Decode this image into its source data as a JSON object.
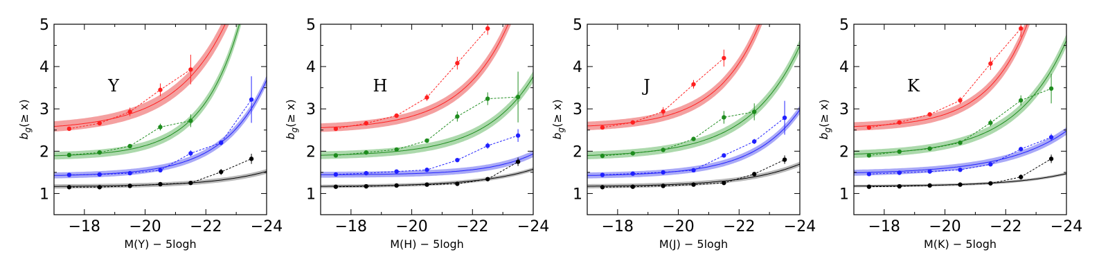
{
  "colors": {
    "red": "#ff2020",
    "green": "#1e8c1e",
    "blue": "#2020ff",
    "black": "#000000",
    "band_red": "#f08080",
    "band_green": "#90cc90",
    "band_blue": "#8c8cf4",
    "band_black": "#a0a0a0"
  },
  "chart_data": [
    {
      "type": "line",
      "title": "Y",
      "xlabel": "M(Y) − 5logh",
      "ylabel": "b_g(≥ x)",
      "xlim": [
        -17,
        -24
      ],
      "ylim": [
        0.5,
        5
      ],
      "xticks": [
        -18,
        -20,
        -22,
        -24
      ],
      "xtick_labels": [
        "−18",
        "−20",
        "−22",
        "−24"
      ],
      "yticks": [
        1,
        2,
        3,
        4,
        5
      ],
      "ytick_labels": [
        "1",
        "2",
        "3",
        "4",
        "5"
      ],
      "series": [
        {
          "name": "red",
          "color": "red",
          "x": [
            -17.5,
            -18.5,
            -19.5,
            -20.5,
            -21.5
          ],
          "y": [
            2.53,
            2.66,
            2.93,
            3.45,
            3.93
          ],
          "err": [
            0.04,
            0.04,
            0.1,
            0.15,
            0.35
          ],
          "model": {
            "a": 2.5,
            "k": 0.085,
            "m0": -17,
            "c": 0.6,
            "band": 0.12
          }
        },
        {
          "name": "green",
          "color": "green",
          "x": [
            -17.5,
            -18.5,
            -19.5,
            -20.5,
            -21.5
          ],
          "y": [
            1.91,
            1.97,
            2.12,
            2.57,
            2.72
          ],
          "err": [
            0.03,
            0.03,
            0.04,
            0.08,
            0.15
          ],
          "model": {
            "a": 1.87,
            "k": 0.0237,
            "m0": -17,
            "c": 0.8,
            "band": 0.09
          }
        },
        {
          "name": "blue",
          "color": "blue",
          "x": [
            -17.5,
            -18.5,
            -19.5,
            -20.5,
            -21.5,
            -22.5,
            -23.5
          ],
          "y": [
            1.44,
            1.45,
            1.48,
            1.55,
            1.95,
            2.2,
            3.22
          ],
          "err": [
            0.02,
            0.02,
            0.02,
            0.03,
            0.07,
            0.06,
            0.55
          ],
          "model": {
            "a": 1.41,
            "k": 0.0169,
            "m0": -17,
            "c": 0.7,
            "band": 0.07
          }
        },
        {
          "name": "black",
          "color": "black",
          "x": [
            -17.5,
            -18.5,
            -19.5,
            -20.5,
            -21.5,
            -22.5,
            -23.5
          ],
          "y": [
            1.15,
            1.15,
            1.18,
            1.22,
            1.25,
            1.51,
            1.82
          ],
          "err": [
            0.02,
            0.02,
            0.02,
            0.02,
            0.02,
            0.07,
            0.12
          ],
          "model": {
            "a": 1.16,
            "k": 0.0077,
            "m0": -17,
            "c": 0.55,
            "band": 0.05
          }
        }
      ]
    },
    {
      "type": "line",
      "title": "H",
      "xlabel": "M(H) − 5logh",
      "ylabel": "b_g(≥ x)",
      "xlim": [
        -17,
        -24
      ],
      "ylim": [
        0.5,
        5
      ],
      "xticks": [
        -18,
        -20,
        -22,
        -24
      ],
      "xtick_labels": [
        "−18",
        "−20",
        "−22",
        "−24"
      ],
      "yticks": [
        1,
        2,
        3,
        4,
        5
      ],
      "ytick_labels": [
        "1",
        "2",
        "3",
        "4",
        "5"
      ],
      "series": [
        {
          "name": "red",
          "color": "red",
          "x": [
            -17.5,
            -18.5,
            -19.5,
            -20.5,
            -21.5,
            -22.5
          ],
          "y": [
            2.53,
            2.66,
            2.84,
            3.27,
            4.08,
            4.9
          ],
          "err": [
            0.04,
            0.04,
            0.05,
            0.08,
            0.15,
            0.15
          ],
          "model": {
            "a": 2.51,
            "k": 0.045,
            "m0": -17,
            "c": 0.65,
            "band": 0.1
          }
        },
        {
          "name": "green",
          "color": "green",
          "x": [
            -17.5,
            -18.5,
            -19.5,
            -20.5,
            -21.5,
            -22.5,
            -23.5
          ],
          "y": [
            1.9,
            1.97,
            2.04,
            2.25,
            2.82,
            3.24,
            3.28
          ],
          "err": [
            0.03,
            0.03,
            0.04,
            0.05,
            0.12,
            0.15,
            0.6
          ],
          "model": {
            "a": 1.88,
            "k": 0.0245,
            "m0": -17,
            "c": 0.62,
            "band": 0.09
          }
        },
        {
          "name": "blue",
          "color": "blue",
          "x": [
            -17.5,
            -18.5,
            -19.5,
            -20.5,
            -21.5,
            -22.5,
            -23.5
          ],
          "y": [
            1.45,
            1.48,
            1.52,
            1.56,
            1.79,
            2.13,
            2.37
          ],
          "err": [
            0.02,
            0.02,
            0.02,
            0.03,
            0.04,
            0.07,
            0.15
          ],
          "model": {
            "a": 1.44,
            "k": 0.0037,
            "m0": -17,
            "c": 0.7,
            "band": 0.07
          }
        },
        {
          "name": "black",
          "color": "black",
          "x": [
            -17.5,
            -18.5,
            -19.5,
            -20.5,
            -21.5,
            -22.5,
            -23.5
          ],
          "y": [
            1.16,
            1.17,
            1.19,
            1.21,
            1.23,
            1.34,
            1.75
          ],
          "err": [
            0.02,
            0.02,
            0.02,
            0.02,
            0.02,
            0.03,
            0.1
          ],
          "model": {
            "a": 1.16,
            "k": 0.0088,
            "m0": -17,
            "c": 0.55,
            "band": 0.04
          }
        }
      ]
    },
    {
      "type": "line",
      "title": "J",
      "xlabel": "M(J) − 5logh",
      "ylabel": "b_g(≥ x)",
      "xlim": [
        -17,
        -24
      ],
      "ylim": [
        0.5,
        5
      ],
      "xticks": [
        -18,
        -20,
        -22,
        -24
      ],
      "xtick_labels": [
        "−18",
        "−20",
        "−22",
        "−24"
      ],
      "yticks": [
        1,
        2,
        3,
        4,
        5
      ],
      "ytick_labels": [
        "1",
        "2",
        "3",
        "4",
        "5"
      ],
      "series": [
        {
          "name": "red",
          "color": "red",
          "x": [
            -17.5,
            -18.5,
            -19.5,
            -20.5,
            -21.5
          ],
          "y": [
            2.56,
            2.68,
            2.94,
            3.58,
            4.2
          ],
          "err": [
            0.04,
            0.04,
            0.1,
            0.1,
            0.2
          ],
          "model": {
            "a": 2.55,
            "k": 0.0463,
            "m0": -17,
            "c": 0.7,
            "band": 0.1
          }
        },
        {
          "name": "green",
          "color": "green",
          "x": [
            -17.5,
            -18.5,
            -19.5,
            -20.5,
            -21.5,
            -22.5
          ],
          "y": [
            1.89,
            1.95,
            2.03,
            2.29,
            2.8,
            2.93
          ],
          "err": [
            0.03,
            0.03,
            0.03,
            0.05,
            0.15,
            0.2
          ],
          "model": {
            "a": 1.86,
            "k": 0.0395,
            "m0": -17,
            "c": 0.6,
            "band": 0.09
          }
        },
        {
          "name": "blue",
          "color": "blue",
          "x": [
            -17.5,
            -18.5,
            -19.5,
            -20.5,
            -21.5,
            -22.5,
            -23.5
          ],
          "y": [
            1.44,
            1.47,
            1.5,
            1.55,
            1.9,
            2.23,
            2.79
          ],
          "err": [
            0.02,
            0.02,
            0.02,
            0.03,
            0.04,
            0.06,
            0.4
          ],
          "model": {
            "a": 1.41,
            "k": 0.0166,
            "m0": -17,
            "c": 0.65,
            "band": 0.07
          }
        },
        {
          "name": "black",
          "color": "black",
          "x": [
            -17.5,
            -18.5,
            -19.5,
            -20.5,
            -21.5,
            -22.5,
            -23.5
          ],
          "y": [
            1.15,
            1.16,
            1.18,
            1.21,
            1.25,
            1.46,
            1.8
          ],
          "err": [
            0.02,
            0.02,
            0.02,
            0.02,
            0.02,
            0.04,
            0.1
          ],
          "model": {
            "a": 1.16,
            "k": 0.0114,
            "m0": -17,
            "c": 0.55,
            "band": 0.05
          }
        }
      ]
    },
    {
      "type": "line",
      "title": "K",
      "xlabel": "M(K) − 5logh",
      "ylabel": "b_g(≥ x)",
      "xlim": [
        -17,
        -24
      ],
      "ylim": [
        0.5,
        5
      ],
      "xticks": [
        -18,
        -20,
        -22,
        -24
      ],
      "xtick_labels": [
        "−18",
        "−20",
        "−22",
        "−24"
      ],
      "yticks": [
        1,
        2,
        3,
        4,
        5
      ],
      "ytick_labels": [
        "1",
        "2",
        "3",
        "4",
        "5"
      ],
      "series": [
        {
          "name": "red",
          "color": "red",
          "x": [
            -17.5,
            -18.5,
            -19.5,
            -20.5,
            -21.5,
            -22.5
          ],
          "y": [
            2.56,
            2.68,
            2.87,
            3.2,
            4.07,
            4.9
          ],
          "err": [
            0.04,
            0.04,
            0.05,
            0.08,
            0.15,
            0.2
          ],
          "model": {
            "a": 2.55,
            "k": 0.0339,
            "m0": -17,
            "c": 0.75,
            "band": 0.1
          }
        },
        {
          "name": "green",
          "color": "green",
          "x": [
            -17.5,
            -18.5,
            -19.5,
            -20.5,
            -21.5,
            -22.5,
            -23.5
          ],
          "y": [
            1.9,
            1.99,
            2.06,
            2.2,
            2.67,
            3.2,
            3.48
          ],
          "err": [
            0.03,
            0.03,
            0.03,
            0.05,
            0.08,
            0.12,
            0.35
          ],
          "model": {
            "a": 1.89,
            "k": 0.0409,
            "m0": -17,
            "c": 0.6,
            "band": 0.09
          }
        },
        {
          "name": "blue",
          "color": "blue",
          "x": [
            -17.5,
            -18.5,
            -19.5,
            -20.5,
            -21.5,
            -22.5,
            -23.5
          ],
          "y": [
            1.46,
            1.49,
            1.52,
            1.56,
            1.69,
            2.05,
            2.33
          ],
          "err": [
            0.02,
            0.02,
            0.02,
            0.03,
            0.04,
            0.05,
            0.08
          ],
          "model": {
            "a": 1.46,
            "k": 0.0307,
            "m0": -17,
            "c": 0.5,
            "band": 0.07
          }
        },
        {
          "name": "black",
          "color": "black",
          "x": [
            -17.5,
            -18.5,
            -19.5,
            -20.5,
            -21.5,
            -22.5,
            -23.5
          ],
          "y": [
            1.16,
            1.17,
            1.19,
            1.21,
            1.24,
            1.39,
            1.82
          ],
          "err": [
            0.02,
            0.02,
            0.02,
            0.02,
            0.02,
            0.06,
            0.1
          ],
          "model": {
            "a": 1.17,
            "k": 0.0064,
            "m0": -17,
            "c": 0.55,
            "band": 0.03
          }
        }
      ]
    }
  ]
}
